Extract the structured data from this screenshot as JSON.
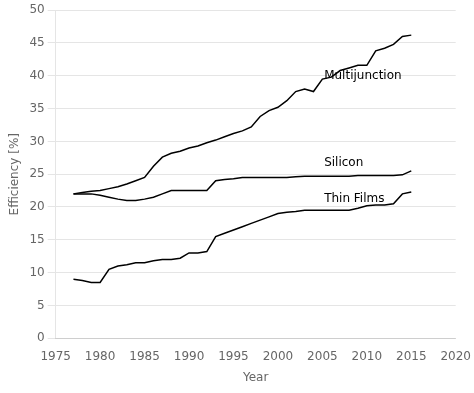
{
  "chart_data": {
    "type": "line",
    "xlabel": "Year",
    "ylabel": "Efficiency [%]",
    "xlim": [
      1975,
      2020
    ],
    "ylim": [
      0,
      50
    ],
    "xticks": [
      1975,
      1980,
      1985,
      1990,
      1995,
      2000,
      2005,
      2010,
      2015,
      2020
    ],
    "yticks": [
      0,
      5,
      10,
      15,
      20,
      25,
      30,
      35,
      40,
      45,
      50
    ],
    "grid": "y",
    "color": "#000000",
    "x": [
      1977,
      1978,
      1979,
      1980,
      1981,
      1982,
      1983,
      1984,
      1985,
      1986,
      1987,
      1988,
      1989,
      1990,
      1991,
      1992,
      1993,
      1994,
      1995,
      1996,
      1997,
      1998,
      1999,
      2000,
      2001,
      2002,
      2003,
      2004,
      2005,
      2006,
      2007,
      2008,
      2009,
      2010,
      2011,
      2012,
      2013,
      2014,
      2015
    ],
    "series": [
      {
        "name": "Multijunction",
        "values": [
          22.0,
          22.2,
          22.4,
          22.5,
          22.8,
          23.1,
          23.5,
          24.0,
          24.5,
          26.2,
          27.6,
          28.2,
          28.5,
          29.0,
          29.3,
          29.8,
          30.2,
          30.7,
          31.2,
          31.6,
          32.2,
          33.8,
          34.7,
          35.2,
          36.2,
          37.6,
          38.0,
          37.6,
          39.5,
          39.8,
          40.8,
          41.2,
          41.6,
          41.6,
          43.8,
          44.2,
          44.8,
          46.0,
          46.2
        ]
      },
      {
        "name": "Silicon",
        "values": [
          22.0,
          22.0,
          22.0,
          21.8,
          21.5,
          21.2,
          21.0,
          21.0,
          21.2,
          21.5,
          22.0,
          22.5,
          22.5,
          22.5,
          22.5,
          22.5,
          24.0,
          24.2,
          24.3,
          24.5,
          24.5,
          24.5,
          24.5,
          24.5,
          24.5,
          24.6,
          24.7,
          24.7,
          24.7,
          24.7,
          24.7,
          24.7,
          24.8,
          24.8,
          24.8,
          24.8,
          24.8,
          24.9,
          25.5
        ]
      },
      {
        "name": "Thin Films",
        "values": [
          9.0,
          8.8,
          8.5,
          8.5,
          10.5,
          11.0,
          11.2,
          11.5,
          11.5,
          11.8,
          12.0,
          12.0,
          12.2,
          13.0,
          13.0,
          13.2,
          15.5,
          16.0,
          16.5,
          17.0,
          17.5,
          18.0,
          18.5,
          19.0,
          19.2,
          19.3,
          19.5,
          19.5,
          19.5,
          19.5,
          19.5,
          19.5,
          19.8,
          20.2,
          20.3,
          20.3,
          20.5,
          22.0,
          22.3
        ]
      }
    ],
    "annotations": [
      {
        "text": "Multijunction",
        "x": 2005.2,
        "y": 39.5
      },
      {
        "text": "Silicon",
        "x": 2005.2,
        "y": 26.2
      },
      {
        "text": "Thin Films",
        "x": 2005.2,
        "y": 20.8
      }
    ]
  }
}
